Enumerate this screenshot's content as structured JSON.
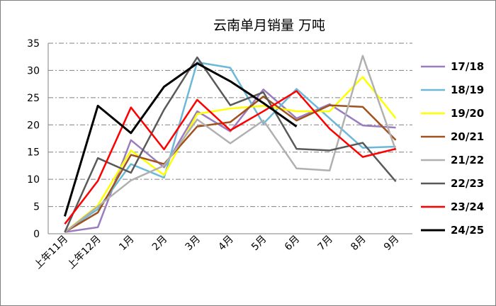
{
  "chart_data": {
    "type": "line",
    "title": "云南单月销量  万吨",
    "xlabel": "",
    "ylabel": "",
    "categories": [
      "上年11月",
      "上年12月",
      "1月",
      "2月",
      "3月",
      "4月",
      "5月",
      "6月",
      "7月",
      "8月",
      "9月"
    ],
    "ylim": [
      0,
      35
    ],
    "yticks": [
      "0",
      "5",
      "10",
      "15",
      "20",
      "25",
      "30",
      "35"
    ],
    "grid": "horizontal-dashdot",
    "legend": "right",
    "series": [
      {
        "name": "17/18",
        "color": "#9b7cc0",
        "values": [
          0.3,
          1.2,
          17.2,
          12.2,
          22.5,
          18.8,
          26.5,
          21.2,
          23.8,
          19.9,
          19.5
        ]
      },
      {
        "name": "18/19",
        "color": "#6cb8d8",
        "values": [
          0.4,
          4.5,
          12.8,
          10.3,
          31.5,
          30.5,
          20.2,
          26.6,
          21.2,
          15.8,
          16.0
        ]
      },
      {
        "name": "19/20",
        "color": "#ffff00",
        "values": [
          0.3,
          5.2,
          15.3,
          10.8,
          22.0,
          23.0,
          23.5,
          22.5,
          22.5,
          28.8,
          21.2
        ]
      },
      {
        "name": "20/21",
        "color": "#a0521e",
        "values": [
          0.3,
          3.9,
          14.5,
          12.8,
          19.7,
          20.5,
          25.2,
          20.8,
          23.6,
          23.3,
          17.2
        ]
      },
      {
        "name": "21/22",
        "color": "#b0b0b0",
        "values": [
          0.3,
          5.0,
          9.8,
          12.5,
          21.0,
          16.6,
          20.8,
          12.0,
          11.6,
          32.7,
          15.3
        ]
      },
      {
        "name": "22/23",
        "color": "#595959",
        "values": [
          0.3,
          13.9,
          11.2,
          22.8,
          32.4,
          23.6,
          26.0,
          15.6,
          15.3,
          16.7,
          9.6
        ]
      },
      {
        "name": "23/24",
        "color": "#ff0000",
        "values": [
          1.8,
          9.7,
          23.2,
          15.5,
          24.6,
          19.0,
          22.5,
          26.2,
          19.3,
          14.1,
          15.6
        ]
      },
      {
        "name": "24/25",
        "color": "#000000",
        "values": [
          3.2,
          23.5,
          18.5,
          27.0,
          31.3,
          28.0,
          24.0,
          19.7,
          null,
          null,
          null
        ]
      }
    ]
  }
}
